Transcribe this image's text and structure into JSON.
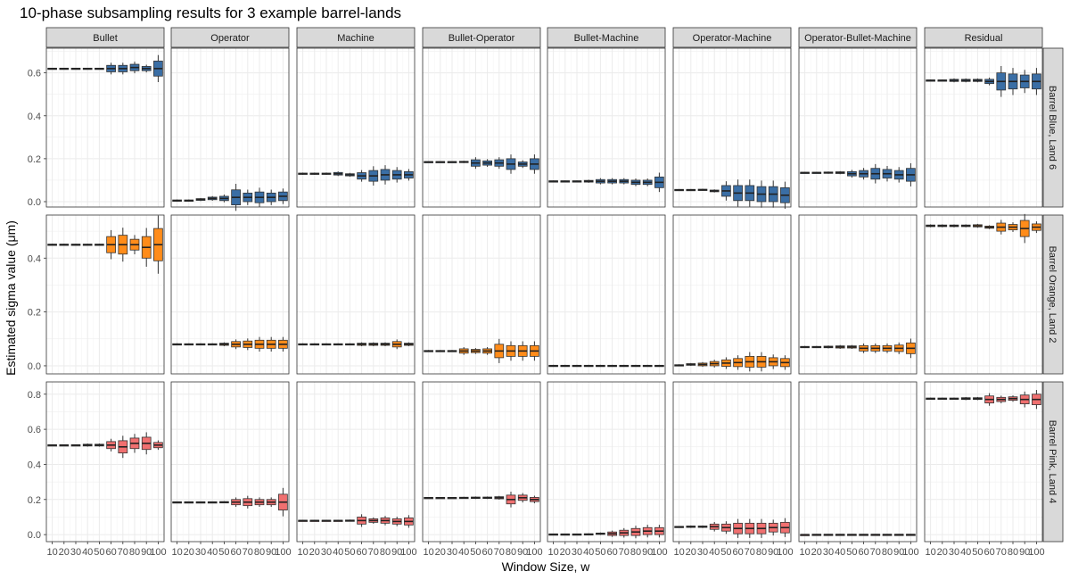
{
  "chart_data": {
    "type": "boxplot",
    "title": "10-phase subsampling results for 3 example barrel-lands",
    "xlabel": "Window Size, w",
    "ylabel": "Estimated sigma value (μm)",
    "x": [
      "10",
      "20",
      "30",
      "40",
      "50",
      "60",
      "70",
      "80",
      "90",
      "100"
    ],
    "columns": [
      "Bullet",
      "Operator",
      "Machine",
      "Bullet-Operator",
      "Bullet-Machine",
      "Operator-Machine",
      "Operator-Bullet-Machine",
      "Residual"
    ],
    "colors": {
      "blue": "#3a6ea5",
      "orange": "#ff8c1a",
      "pink": "#f07070"
    },
    "rows": [
      {
        "label": "Barrel Blue, Land 6",
        "color": "blue",
        "ylim": [
          -0.025,
          0.715
        ],
        "yticks": [
          0.0,
          0.2,
          0.4,
          0.6
        ],
        "yticklabels": [
          "0.0",
          "0.2",
          "0.4",
          "0.6"
        ],
        "panels": [
          {
            "center": [
              0.62,
              0.62,
              0.62,
              0.62,
              0.62,
              0.62,
              0.62,
              0.625,
              0.62,
              0.62
            ],
            "spread": [
              0.002,
              0.002,
              0.002,
              0.002,
              0.002,
              0.015,
              0.015,
              0.015,
              0.01,
              0.035
            ]
          },
          {
            "center": [
              0.005,
              0.005,
              0.01,
              0.015,
              0.015,
              0.02,
              0.02,
              0.02,
              0.02,
              0.025
            ],
            "spread": [
              0.003,
              0.003,
              0.004,
              0.006,
              0.01,
              0.035,
              0.02,
              0.025,
              0.02,
              0.02
            ]
          },
          {
            "center": [
              0.13,
              0.13,
              0.13,
              0.13,
              0.125,
              0.12,
              0.12,
              0.125,
              0.125,
              0.125
            ],
            "spread": [
              0.003,
              0.003,
              0.003,
              0.006,
              0.005,
              0.015,
              0.025,
              0.025,
              0.02,
              0.015
            ]
          },
          {
            "center": [
              0.185,
              0.185,
              0.185,
              0.185,
              0.18,
              0.18,
              0.18,
              0.175,
              0.175,
              0.175
            ],
            "spread": [
              0.002,
              0.002,
              0.002,
              0.003,
              0.015,
              0.01,
              0.015,
              0.025,
              0.01,
              0.025
            ]
          },
          {
            "center": [
              0.095,
              0.095,
              0.095,
              0.095,
              0.095,
              0.095,
              0.095,
              0.09,
              0.09,
              0.09
            ],
            "spread": [
              0.002,
              0.002,
              0.002,
              0.004,
              0.008,
              0.008,
              0.008,
              0.01,
              0.01,
              0.025
            ]
          },
          {
            "center": [
              0.055,
              0.055,
              0.055,
              0.05,
              0.05,
              0.04,
              0.04,
              0.035,
              0.035,
              0.03
            ],
            "spread": [
              0.002,
              0.002,
              0.003,
              0.004,
              0.025,
              0.035,
              0.035,
              0.035,
              0.035,
              0.035
            ]
          },
          {
            "center": [
              0.135,
              0.135,
              0.135,
              0.135,
              0.13,
              0.13,
              0.13,
              0.13,
              0.125,
              0.125
            ],
            "spread": [
              0.002,
              0.002,
              0.003,
              0.004,
              0.01,
              0.015,
              0.025,
              0.02,
              0.02,
              0.03
            ]
          },
          {
            "center": [
              0.565,
              0.565,
              0.565,
              0.565,
              0.565,
              0.56,
              0.56,
              0.56,
              0.56,
              0.56
            ],
            "spread": [
              0.002,
              0.002,
              0.005,
              0.005,
              0.005,
              0.01,
              0.04,
              0.035,
              0.03,
              0.035
            ]
          }
        ]
      },
      {
        "label": "Barrel Orange, Land 2",
        "color": "orange",
        "ylim": [
          -0.03,
          0.56
        ],
        "yticks": [
          0.0,
          0.2,
          0.4
        ],
        "yticklabels": [
          "0.0",
          "0.2",
          "0.4"
        ],
        "panels": [
          {
            "center": [
              0.45,
              0.45,
              0.45,
              0.45,
              0.45,
              0.45,
              0.45,
              0.45,
              0.44,
              0.45
            ],
            "spread": [
              0.002,
              0.002,
              0.002,
              0.002,
              0.002,
              0.03,
              0.035,
              0.02,
              0.04,
              0.06
            ]
          },
          {
            "center": [
              0.08,
              0.08,
              0.08,
              0.08,
              0.08,
              0.08,
              0.08,
              0.08,
              0.08,
              0.08
            ],
            "spread": [
              0.002,
              0.002,
              0.002,
              0.002,
              0.004,
              0.01,
              0.012,
              0.015,
              0.015,
              0.015
            ]
          },
          {
            "center": [
              0.08,
              0.08,
              0.08,
              0.08,
              0.08,
              0.08,
              0.08,
              0.08,
              0.08,
              0.08
            ],
            "spread": [
              0.002,
              0.002,
              0.002,
              0.002,
              0.002,
              0.004,
              0.004,
              0.004,
              0.01,
              0.004
            ]
          },
          {
            "center": [
              0.055,
              0.055,
              0.055,
              0.055,
              0.055,
              0.055,
              0.055,
              0.055,
              0.055,
              0.055
            ],
            "spread": [
              0.002,
              0.002,
              0.002,
              0.008,
              0.006,
              0.008,
              0.025,
              0.02,
              0.02,
              0.02
            ]
          },
          {
            "center": [
              0.0,
              0.0,
              0.0,
              0.0,
              0.0,
              0.0,
              0.0,
              0.0,
              0.0,
              0.0
            ],
            "spread": [
              0.002,
              0.002,
              0.002,
              0.002,
              0.002,
              0.002,
              0.002,
              0.002,
              0.002,
              0.002
            ]
          },
          {
            "center": [
              0.002,
              0.005,
              0.005,
              0.008,
              0.01,
              0.012,
              0.015,
              0.015,
              0.015,
              0.012
            ],
            "spread": [
              0.002,
              0.003,
              0.005,
              0.008,
              0.012,
              0.015,
              0.02,
              0.02,
              0.015,
              0.015
            ]
          },
          {
            "center": [
              0.07,
              0.07,
              0.07,
              0.07,
              0.07,
              0.065,
              0.065,
              0.065,
              0.065,
              0.065
            ],
            "spread": [
              0.002,
              0.002,
              0.003,
              0.004,
              0.004,
              0.01,
              0.01,
              0.01,
              0.012,
              0.02
            ]
          },
          {
            "center": [
              0.52,
              0.52,
              0.52,
              0.52,
              0.52,
              0.515,
              0.515,
              0.515,
              0.51,
              0.515
            ],
            "spread": [
              0.003,
              0.003,
              0.003,
              0.003,
              0.004,
              0.004,
              0.015,
              0.01,
              0.03,
              0.012
            ]
          }
        ]
      },
      {
        "label": "Barrel Pink, Land 4",
        "color": "pink",
        "ylim": [
          -0.04,
          0.87
        ],
        "yticks": [
          0.0,
          0.2,
          0.4,
          0.6,
          0.8
        ],
        "yticklabels": [
          "0.0",
          "0.2",
          "0.4",
          "0.6",
          "0.8"
        ],
        "panels": [
          {
            "center": [
              0.51,
              0.51,
              0.51,
              0.51,
              0.51,
              0.51,
              0.5,
              0.52,
              0.52,
              0.51
            ],
            "spread": [
              0.002,
              0.002,
              0.002,
              0.005,
              0.005,
              0.02,
              0.035,
              0.03,
              0.035,
              0.015
            ]
          },
          {
            "center": [
              0.185,
              0.185,
              0.185,
              0.185,
              0.185,
              0.185,
              0.185,
              0.185,
              0.185,
              0.185
            ],
            "spread": [
              0.002,
              0.002,
              0.002,
              0.002,
              0.003,
              0.015,
              0.02,
              0.015,
              0.015,
              0.045
            ]
          },
          {
            "center": [
              0.08,
              0.08,
              0.08,
              0.08,
              0.08,
              0.08,
              0.08,
              0.08,
              0.075,
              0.075
            ],
            "spread": [
              0.002,
              0.002,
              0.002,
              0.002,
              0.003,
              0.02,
              0.01,
              0.015,
              0.015,
              0.02
            ]
          },
          {
            "center": [
              0.21,
              0.21,
              0.21,
              0.21,
              0.21,
              0.21,
              0.21,
              0.2,
              0.21,
              0.2
            ],
            "spread": [
              0.002,
              0.002,
              0.002,
              0.003,
              0.004,
              0.004,
              0.006,
              0.025,
              0.015,
              0.012
            ]
          },
          {
            "center": [
              0.002,
              0.002,
              0.002,
              0.002,
              0.005,
              0.005,
              0.01,
              0.015,
              0.02,
              0.02
            ],
            "spread": [
              0.002,
              0.002,
              0.002,
              0.003,
              0.004,
              0.01,
              0.015,
              0.02,
              0.02,
              0.02
            ]
          },
          {
            "center": [
              0.045,
              0.045,
              0.045,
              0.045,
              0.04,
              0.035,
              0.035,
              0.035,
              0.04,
              0.04
            ],
            "spread": [
              0.002,
              0.004,
              0.004,
              0.015,
              0.02,
              0.03,
              0.03,
              0.03,
              0.025,
              0.03
            ]
          },
          {
            "center": [
              0.0,
              0.0,
              0.0,
              0.0,
              0.0,
              0.0,
              0.0,
              0.0,
              0.0,
              0.0
            ],
            "spread": [
              0.001,
              0.002,
              0.002,
              0.002,
              0.002,
              0.002,
              0.002,
              0.002,
              0.002,
              0.002
            ]
          },
          {
            "center": [
              0.775,
              0.775,
              0.775,
              0.775,
              0.775,
              0.77,
              0.77,
              0.775,
              0.77,
              0.77
            ],
            "spread": [
              0.003,
              0.003,
              0.003,
              0.005,
              0.005,
              0.02,
              0.012,
              0.01,
              0.025,
              0.03
            ]
          }
        ]
      }
    ]
  }
}
